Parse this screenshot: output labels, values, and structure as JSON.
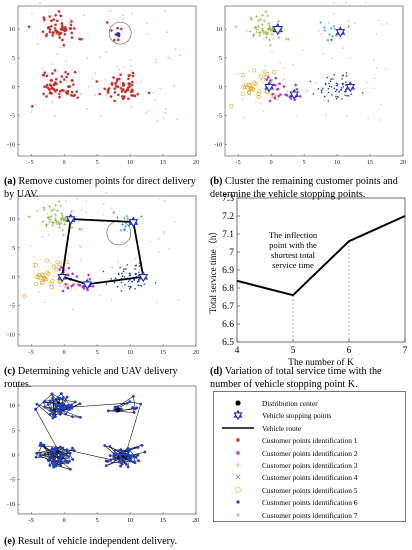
{
  "panels": {
    "a": {
      "label": "(a)",
      "caption": "Remove customer points for direct delivery by UAV."
    },
    "b": {
      "label": "(b)",
      "caption": "Cluster the remaining customer points and determine the vehicle stopping points."
    },
    "c": {
      "label": "(c)",
      "caption": "Determining vehicle and UAV delivery routes."
    },
    "d": {
      "label": "(d)",
      "caption": "Variation of total service time with the number of vehicle stopping point K."
    },
    "e": {
      "label": "(e)",
      "caption": "Result of vehicle independent delivery."
    }
  },
  "scatter_axes": {
    "xticks": [
      "-5",
      "0",
      "5",
      "10",
      "15",
      "20"
    ],
    "yticks": [
      "10",
      "5",
      "0",
      "-5",
      "-10"
    ]
  },
  "chart_data": [
    {
      "type": "line",
      "panel": "d",
      "x": [
        4,
        5,
        6,
        7
      ],
      "values": [
        6.84,
        6.76,
        7.06,
        7.2
      ],
      "xlabel": "The number of K",
      "ylabel": "Total service time（h）",
      "xlim": [
        4,
        7
      ],
      "ylim": [
        6.5,
        7.3
      ],
      "xticks": [
        "4",
        "5",
        "6",
        "7"
      ],
      "yticks": [
        "7.3",
        "7.2",
        "7.1",
        "7",
        "6.9",
        "6.8",
        "6.7",
        "6.6",
        "6.5"
      ],
      "annotation": "The inflection point with the shortest total service time",
      "annotation_lines": [
        "The inflection",
        "point with the",
        "shortest total",
        "service time"
      ]
    }
  ],
  "legend": {
    "items": [
      {
        "label": "Distribution center",
        "icon": "filled-dot-icon",
        "color": "#000000"
      },
      {
        "label": "Vehicle stopping points",
        "icon": "hexagram-icon",
        "color": "#1f2fb8"
      },
      {
        "label": "Vehicle route",
        "icon": "line-icon",
        "color": "#000000"
      },
      {
        "label": "Customer points identification 1",
        "icon": "red-asterisk-icon",
        "color": "#c0302a"
      },
      {
        "label": "Customer points identification 2",
        "icon": "magenta-star-icon",
        "color": "#b23bd1"
      },
      {
        "label": "Customer points identification 3",
        "icon": "plus-icon",
        "color": "#8fbc4a"
      },
      {
        "label": "Customer points identification 4",
        "icon": "cross-icon",
        "color": "#8c3a8c"
      },
      {
        "label": "Customer points identification 5",
        "icon": "circle-icon",
        "color": "#e0a21e"
      },
      {
        "label": "Customer points identification 6",
        "icon": "dot-icon",
        "color": "#1f3fbf"
      },
      {
        "label": "Customer points identification 7",
        "icon": "blue-plus-icon",
        "color": "#2a8fd0"
      }
    ]
  }
}
